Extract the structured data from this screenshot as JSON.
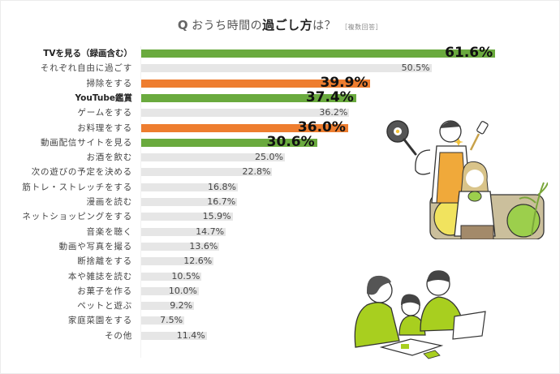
{
  "title": {
    "q_mark": "Q",
    "prefix": "おうち時間の",
    "emphasis": "過ごし方",
    "suffix": "は？",
    "note": "［複数回答］"
  },
  "colors": {
    "green": "#6aaa3e",
    "orange": "#ee7d2f",
    "gray": "#e6e6e6"
  },
  "chart_data": {
    "type": "bar",
    "orientation": "horizontal",
    "title": "おうち時間の過ごし方は？［複数回答］",
    "xlabel": "",
    "ylabel": "",
    "unit": "%",
    "grid": false,
    "legend": null,
    "categories": [
      "TVを見る（録画含む）",
      "それぞれ自由に過ごす",
      "掃除をする",
      "YouTube鑑賞",
      "ゲームをする",
      "お料理をする",
      "動画配信サイトを見る",
      "お酒を飲む",
      "次の遊びの予定を決める",
      "筋トレ・ストレッチをする",
      "漫画を読む",
      "ネットショッピングをする",
      "音楽を聴く",
      "動画や写真を撮る",
      "断捨離をする",
      "本や雑誌を読む",
      "お菓子を作る",
      "ペットと遊ぶ",
      "家庭菜園をする",
      "その他"
    ],
    "values": [
      61.6,
      50.5,
      39.9,
      37.4,
      36.2,
      36.0,
      30.6,
      25.0,
      22.8,
      16.8,
      16.7,
      15.9,
      14.7,
      13.6,
      12.6,
      10.5,
      10.0,
      9.2,
      7.5,
      11.4
    ],
    "value_labels": [
      "61.6%",
      "50.5%",
      "39.9%",
      "37.4%",
      "36.2%",
      "36.0%",
      "30.6%",
      "25.0%",
      "22.8%",
      "16.8%",
      "16.7%",
      "15.9%",
      "14.7%",
      "13.6%",
      "12.6%",
      "10.5%",
      "10.0%",
      "9.2%",
      "7.5%",
      "11.4%"
    ],
    "bar_colors": [
      "green",
      "gray",
      "orange",
      "green",
      "gray",
      "orange",
      "green",
      "gray",
      "gray",
      "gray",
      "gray",
      "gray",
      "gray",
      "gray",
      "gray",
      "gray",
      "gray",
      "gray",
      "gray",
      "gray"
    ],
    "highlighted": [
      true,
      false,
      true,
      true,
      false,
      true,
      true,
      false,
      false,
      false,
      false,
      false,
      false,
      false,
      false,
      false,
      false,
      false,
      false,
      false
    ],
    "xlim": [
      0,
      65
    ]
  },
  "illustrations": [
    {
      "name": "couple-cooking-relaxing",
      "description": "man in orange apron flexing with frying pan and spatula, woman on sofa holding cup"
    },
    {
      "name": "family-at-table",
      "description": "mother, child and father in green clothes looking at papers"
    }
  ]
}
